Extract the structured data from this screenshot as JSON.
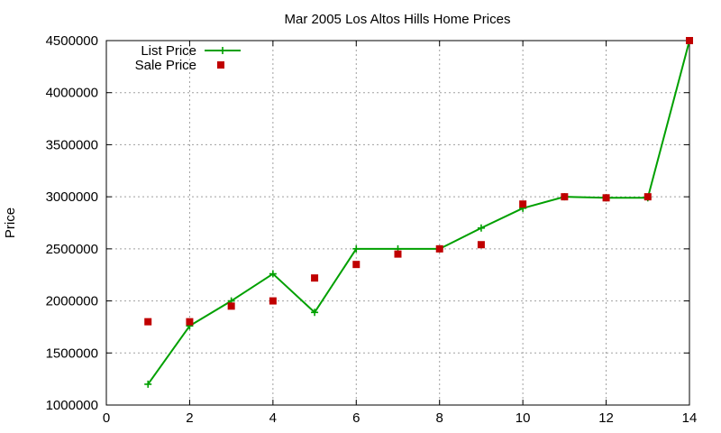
{
  "chart_data": {
    "type": "line",
    "title": "Mar 2005 Los Altos Hills Home Prices",
    "xlabel": "",
    "ylabel": "Price",
    "xlim": [
      0,
      14
    ],
    "ylim": [
      1000000,
      4500000
    ],
    "x_ticks": [
      0,
      2,
      4,
      6,
      8,
      10,
      12,
      14
    ],
    "y_ticks": [
      1000000,
      1500000,
      2000000,
      2500000,
      3000000,
      3500000,
      4000000,
      4500000
    ],
    "grid": true,
    "legend_position": "top-left",
    "series": [
      {
        "name": "List Price",
        "style": "line+cross",
        "color": "#00a000",
        "x": [
          1,
          2,
          3,
          4,
          5,
          6,
          7,
          8,
          9,
          10,
          11,
          12,
          13,
          14
        ],
        "y": [
          1200000,
          1760000,
          2000000,
          2260000,
          1890000,
          2500000,
          2500000,
          2500000,
          2700000,
          2890000,
          3000000,
          2990000,
          2990000,
          4500000
        ]
      },
      {
        "name": "Sale Price",
        "style": "square",
        "color": "#c00000",
        "x": [
          1,
          2,
          3,
          4,
          5,
          6,
          7,
          8,
          9,
          10,
          11,
          12,
          13,
          14
        ],
        "y": [
          1800000,
          1800000,
          1950000,
          2000000,
          2220000,
          2350000,
          2450000,
          2500000,
          2540000,
          2930000,
          3000000,
          2990000,
          3000000,
          4500000
        ]
      }
    ]
  }
}
